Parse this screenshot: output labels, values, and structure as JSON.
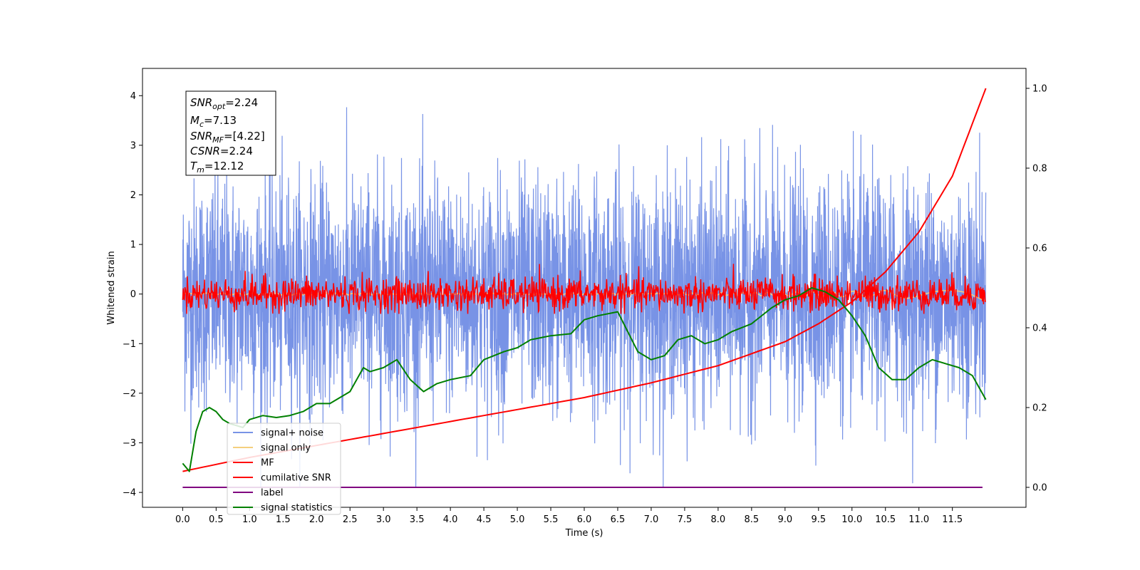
{
  "chart_data": {
    "type": "line",
    "xlabel": "Time (s)",
    "ylabel": "Whitened strain",
    "x_ticks": [
      0.0,
      0.5,
      1.0,
      1.5,
      2.0,
      2.5,
      3.0,
      3.5,
      4.0,
      4.5,
      5.0,
      5.5,
      6.0,
      6.5,
      7.0,
      7.5,
      8.0,
      8.5,
      9.0,
      9.5,
      10.0,
      10.5,
      11.0,
      11.5
    ],
    "x_tick_labels": [
      "0.0",
      "0.5",
      "1.0",
      "1.5",
      "2.0",
      "2.5",
      "3.0",
      "3.5",
      "4.0",
      "4.5",
      "5.0",
      "5.5",
      "6.0",
      "6.5",
      "7.0",
      "7.5",
      "8.0",
      "8.5",
      "9.0",
      "9.5",
      "10.0",
      "10.5",
      "11.0",
      "11.5"
    ],
    "xlim": [
      -0.6,
      12.6
    ],
    "ylim_left": [
      -4.3,
      4.55
    ],
    "y_ticks_left": [
      -4,
      -3,
      -2,
      -1,
      0,
      1,
      2,
      3,
      4
    ],
    "ylim_right": [
      -0.05,
      1.05
    ],
    "y_ticks_right": [
      0.0,
      0.2,
      0.4,
      0.6,
      0.8,
      1.0
    ],
    "y_tick_labels_right": [
      "0.0",
      "0.2",
      "0.4",
      "0.6",
      "0.8",
      "1.0"
    ],
    "grid": false,
    "legend_position": "lower-left",
    "info_box": {
      "snr_opt": "2.24",
      "mc": "7.13",
      "snr_mf": "[4.22]",
      "csnr": "2.24",
      "tm": "12.12"
    },
    "series": [
      {
        "name": "signal+ noise",
        "axis": "left",
        "color": "#7893e6",
        "x_range": [
          0,
          12.0
        ],
        "mean": 0.0,
        "envelope": [
          -3.9,
          4.2
        ],
        "style": "dense noise"
      },
      {
        "name": "signal only",
        "axis": "left",
        "color": "#f5cf7e",
        "x_range": [
          0,
          12.0
        ],
        "values_approx": 0.0
      },
      {
        "name": "MF",
        "axis": "left",
        "color": "#ff0000",
        "x_range": [
          0,
          12.0
        ],
        "mean": 0.0,
        "envelope": [
          -0.4,
          0.95
        ],
        "style": "noise"
      },
      {
        "name": "cumilative SNR",
        "axis": "right",
        "color": "#ff0000",
        "x": [
          0,
          1,
          2,
          3,
          4,
          5,
          6,
          7,
          8,
          9,
          9.5,
          10,
          10.5,
          11,
          11.5,
          12.0
        ],
        "values": [
          0.04,
          0.075,
          0.105,
          0.135,
          0.165,
          0.195,
          0.225,
          0.262,
          0.305,
          0.365,
          0.41,
          0.465,
          0.54,
          0.64,
          0.78,
          1.0
        ]
      },
      {
        "name": "label",
        "axis": "right",
        "color": "#800080",
        "x": [
          0,
          11.95
        ],
        "values": [
          0.0,
          0.0
        ]
      },
      {
        "name": "signal statistics",
        "axis": "right",
        "color": "#008000",
        "x": [
          0,
          0.1,
          0.2,
          0.3,
          0.4,
          0.5,
          0.6,
          0.7,
          0.8,
          0.9,
          1.0,
          1.2,
          1.4,
          1.6,
          1.8,
          2.0,
          2.2,
          2.5,
          2.7,
          2.8,
          3.0,
          3.2,
          3.4,
          3.6,
          3.8,
          4.0,
          4.3,
          4.5,
          4.8,
          5.0,
          5.2,
          5.5,
          5.8,
          6.0,
          6.2,
          6.5,
          6.8,
          7.0,
          7.2,
          7.4,
          7.6,
          7.8,
          8.0,
          8.2,
          8.5,
          8.8,
          9.0,
          9.2,
          9.4,
          9.6,
          9.8,
          10.0,
          10.2,
          10.4,
          10.6,
          10.8,
          11.0,
          11.2,
          11.4,
          11.6,
          11.8,
          12.0
        ],
        "values": [
          0.06,
          0.04,
          0.14,
          0.19,
          0.2,
          0.19,
          0.17,
          0.16,
          0.155,
          0.15,
          0.17,
          0.18,
          0.175,
          0.18,
          0.19,
          0.21,
          0.21,
          0.24,
          0.3,
          0.29,
          0.3,
          0.32,
          0.27,
          0.24,
          0.26,
          0.27,
          0.28,
          0.32,
          0.34,
          0.35,
          0.37,
          0.38,
          0.385,
          0.42,
          0.43,
          0.44,
          0.34,
          0.32,
          0.33,
          0.37,
          0.38,
          0.36,
          0.37,
          0.39,
          0.41,
          0.45,
          0.47,
          0.48,
          0.5,
          0.49,
          0.47,
          0.43,
          0.38,
          0.3,
          0.27,
          0.27,
          0.3,
          0.32,
          0.31,
          0.3,
          0.28,
          0.22
        ]
      }
    ]
  }
}
